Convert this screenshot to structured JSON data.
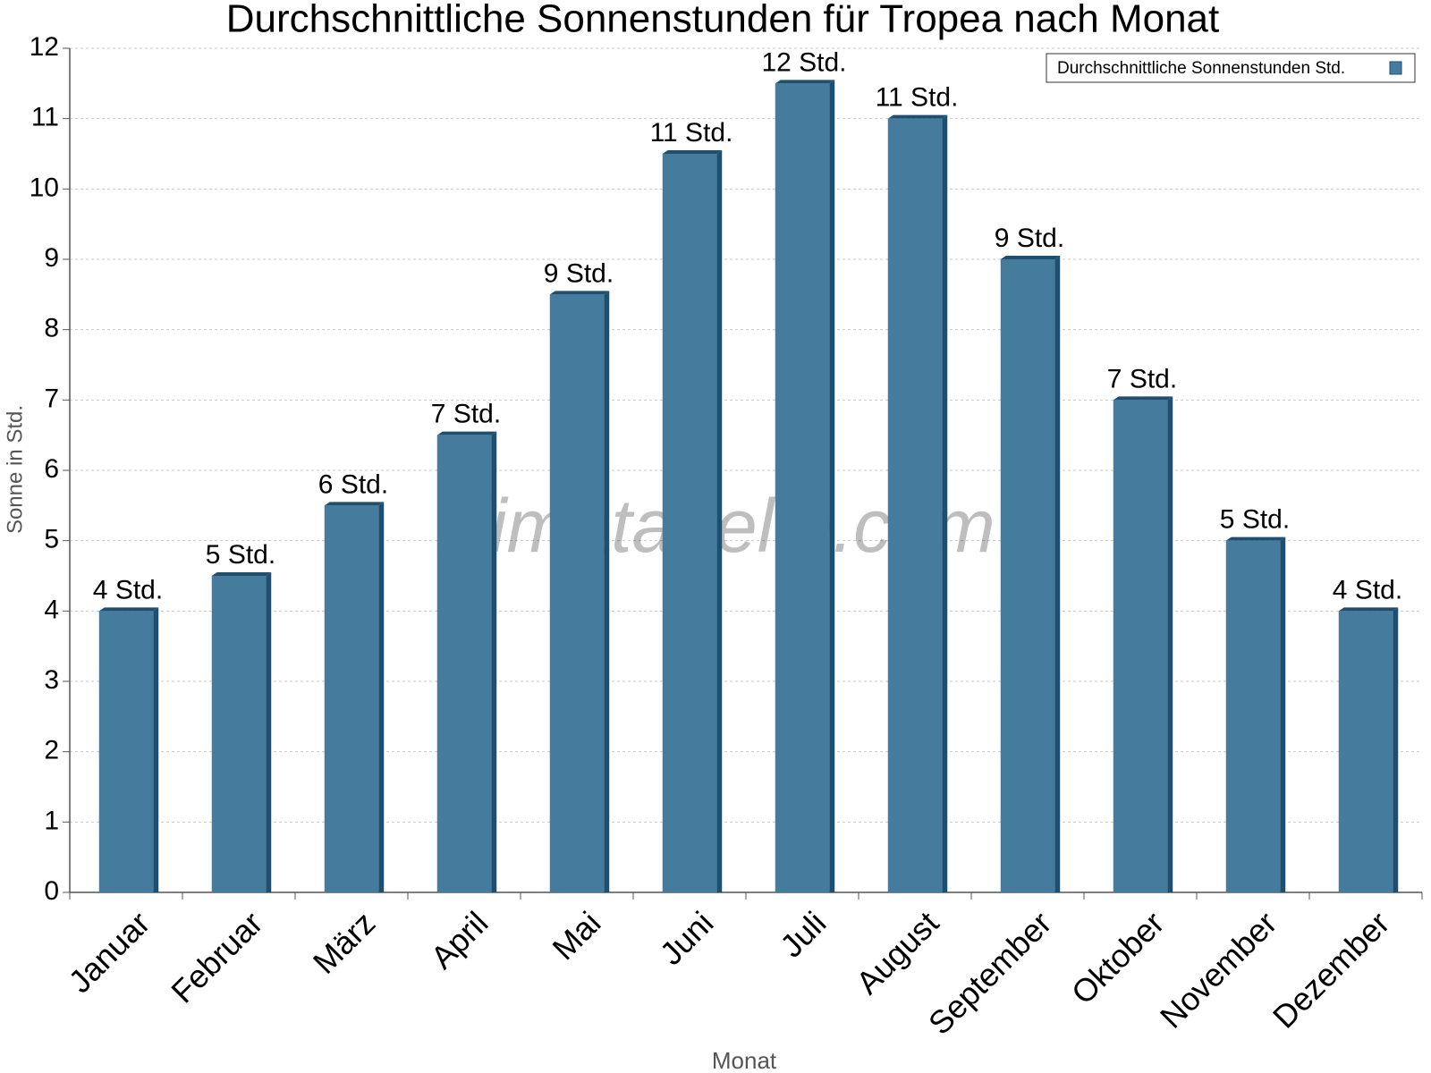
{
  "chart_data": {
    "type": "bar",
    "title": "Durchschnittliche Sonnenstunden für Tropea nach Monat",
    "x_label": "Monat",
    "y_label": "Sonne in Std.",
    "watermark": "klimatabelle.com",
    "categories": [
      "Januar",
      "Februar",
      "März",
      "April",
      "Mai",
      "Juni",
      "Juli",
      "August",
      "September",
      "Oktober",
      "November",
      "Dezember"
    ],
    "series": [
      {
        "name": "Durchschnittliche Sonnenstunden Std.",
        "color": "#457b9d",
        "values": [
          4,
          4.5,
          5.5,
          6.5,
          8.5,
          10.5,
          11.5,
          11,
          9,
          7,
          5,
          4
        ],
        "value_labels": [
          "4 Std.",
          "5 Std.",
          "6 Std.",
          "7 Std.",
          "9 Std.",
          "11 Std.",
          "12 Std.",
          "11 Std.",
          "9 Std.",
          "7 Std.",
          "5 Std.",
          "4 Std."
        ]
      }
    ],
    "ylim": [
      0,
      12
    ],
    "yticks": [
      0,
      1,
      2,
      3,
      4,
      5,
      6,
      7,
      8,
      9,
      10,
      11,
      12
    ],
    "grid": true,
    "legend": "top-right"
  }
}
